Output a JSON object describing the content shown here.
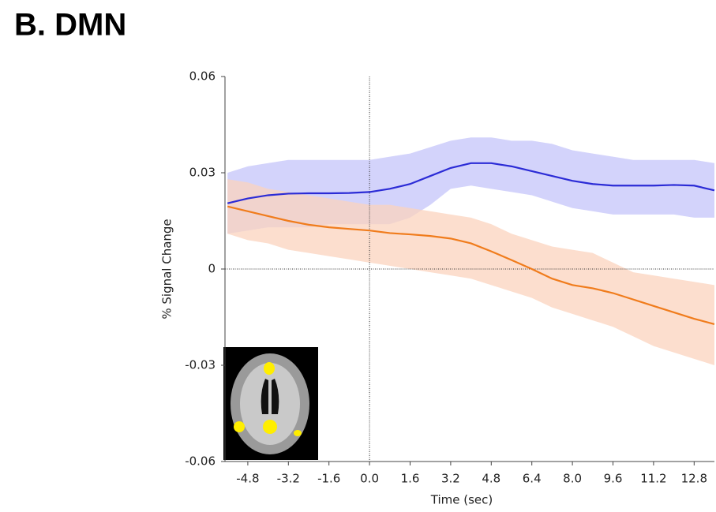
{
  "chart_data": {
    "type": "line",
    "title": "B. DMN",
    "xlabel": "Time (sec)",
    "ylabel": "% Signal Change",
    "x": [
      -5.6,
      -4.8,
      -4.0,
      -3.2,
      -2.4,
      -1.6,
      -0.8,
      0.0,
      0.8,
      1.6,
      2.4,
      3.2,
      4.0,
      4.8,
      5.6,
      6.4,
      7.2,
      8.0,
      8.8,
      9.6,
      10.4,
      11.2,
      12.0,
      12.8,
      13.6
    ],
    "series": [
      {
        "color": "#2b2bd6",
        "band_color": "#c4c4fa",
        "values": [
          0.0205,
          0.022,
          0.023,
          0.0235,
          0.0236,
          0.0236,
          0.0237,
          0.024,
          0.025,
          0.0265,
          0.029,
          0.0315,
          0.033,
          0.033,
          0.032,
          0.0305,
          0.029,
          0.0275,
          0.0265,
          0.026,
          0.026,
          0.026,
          0.0262,
          0.026,
          0.0245
        ],
        "upper": [
          0.03,
          0.032,
          0.033,
          0.034,
          0.034,
          0.034,
          0.034,
          0.034,
          0.035,
          0.036,
          0.038,
          0.04,
          0.041,
          0.041,
          0.04,
          0.04,
          0.039,
          0.037,
          0.036,
          0.035,
          0.034,
          0.034,
          0.034,
          0.034,
          0.033
        ],
        "lower": [
          0.011,
          0.012,
          0.013,
          0.013,
          0.013,
          0.014,
          0.014,
          0.014,
          0.014,
          0.016,
          0.02,
          0.025,
          0.026,
          0.025,
          0.024,
          0.023,
          0.021,
          0.019,
          0.018,
          0.017,
          0.017,
          0.017,
          0.017,
          0.016,
          0.016
        ]
      },
      {
        "color": "#f07c1c",
        "band_color": "#fbd3bd",
        "values": [
          0.0195,
          0.018,
          0.0165,
          0.015,
          0.0138,
          0.013,
          0.0125,
          0.012,
          0.0112,
          0.0108,
          0.0103,
          0.0095,
          0.008,
          0.0055,
          0.0028,
          0.0,
          -0.003,
          -0.005,
          -0.006,
          -0.0075,
          -0.0095,
          -0.0115,
          -0.0135,
          -0.0155,
          -0.0172
        ],
        "upper": [
          0.028,
          0.027,
          0.025,
          0.024,
          0.023,
          0.022,
          0.021,
          0.02,
          0.02,
          0.019,
          0.018,
          0.017,
          0.016,
          0.014,
          0.011,
          0.009,
          0.007,
          0.006,
          0.005,
          0.002,
          -0.001,
          -0.002,
          -0.003,
          -0.004,
          -0.005
        ],
        "lower": [
          0.011,
          0.009,
          0.008,
          0.006,
          0.005,
          0.004,
          0.003,
          0.002,
          0.001,
          0.0,
          -0.001,
          -0.002,
          -0.003,
          -0.005,
          -0.007,
          -0.009,
          -0.012,
          -0.014,
          -0.016,
          -0.018,
          -0.021,
          -0.024,
          -0.026,
          -0.028,
          -0.03
        ]
      }
    ],
    "xlim": [
      -5.7,
      13.6
    ],
    "ylim": [
      -0.06,
      0.06
    ],
    "xticks": [
      -4.8,
      -3.2,
      -1.6,
      {
        "value": 0,
        "label": "0.0"
      },
      1.6,
      3.2,
      4.8,
      6.4,
      {
        "value": 8,
        "label": "8.0"
      },
      9.6,
      11.2,
      12.8
    ],
    "yticks": [
      0.06,
      0.03,
      0,
      -0.03,
      -0.06
    ]
  }
}
